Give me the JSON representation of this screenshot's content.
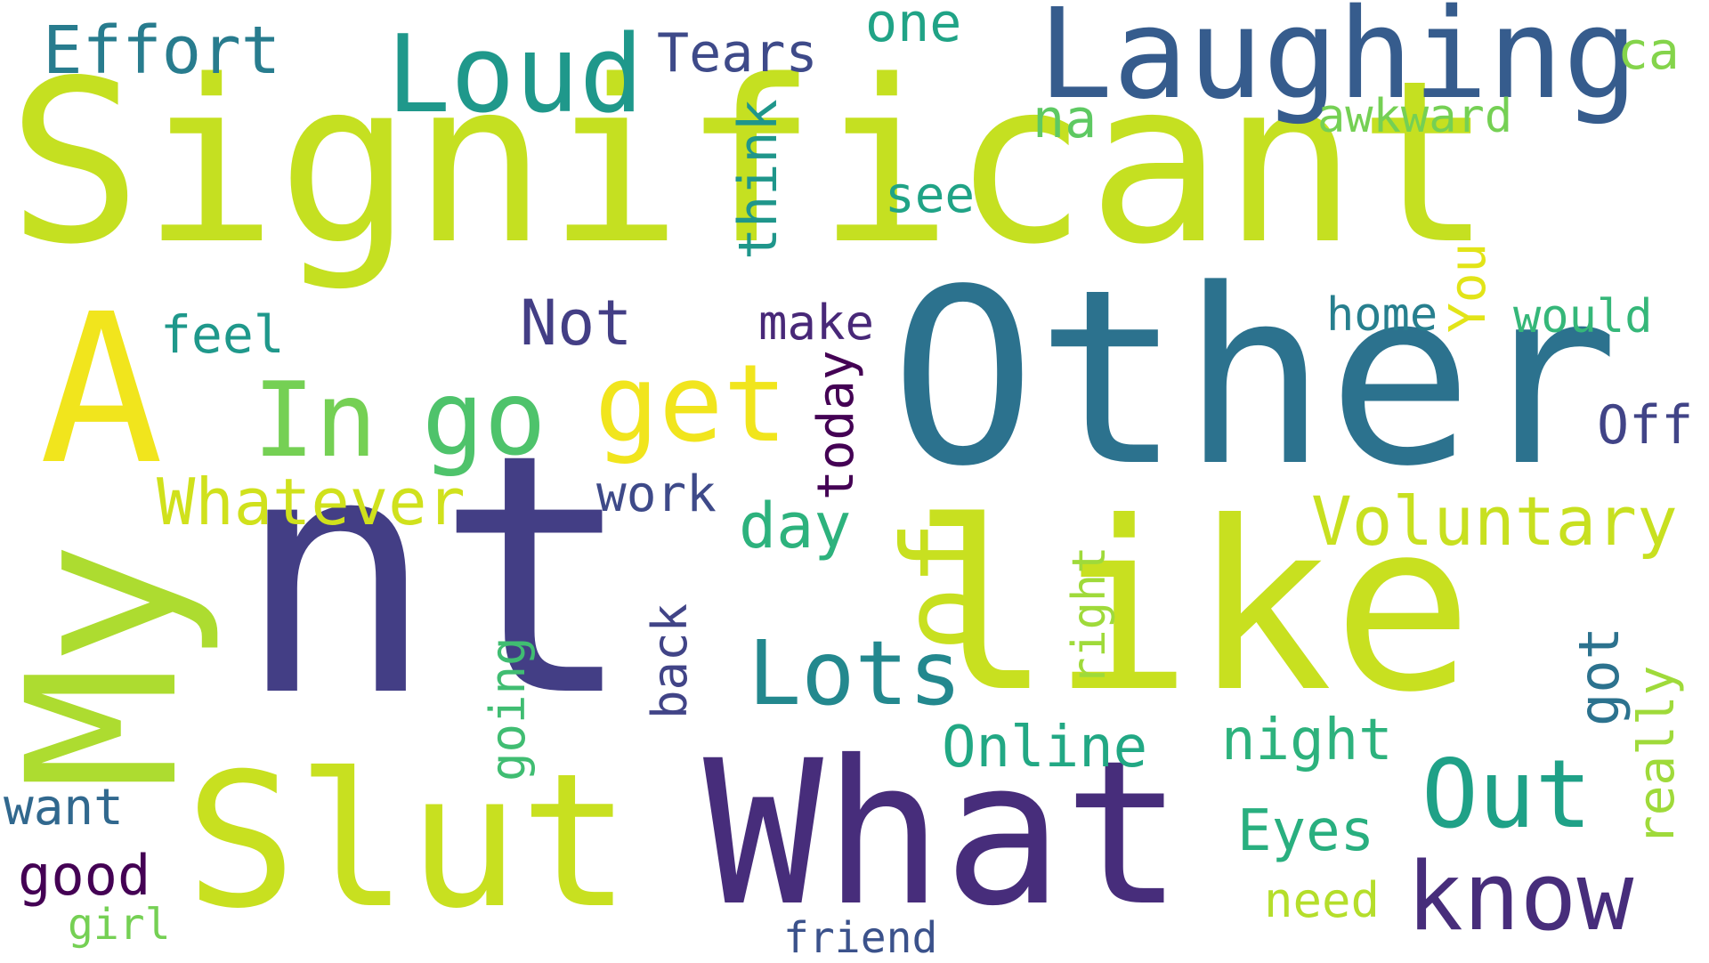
{
  "colors": {
    "background": "#ffffff",
    "palette": "viridis"
  },
  "words": [
    {
      "text": "Significant",
      "color": "#c5e021",
      "orientation": "horizontal"
    },
    {
      "text": "Other",
      "color": "#2c728e",
      "orientation": "horizontal"
    },
    {
      "text": "nt",
      "color": "#433e85",
      "orientation": "horizontal"
    },
    {
      "text": "like",
      "color": "#c8e020",
      "orientation": "horizontal"
    },
    {
      "text": "What",
      "color": "#472d7b",
      "orientation": "horizontal"
    },
    {
      "text": "Slut",
      "color": "#c8e020",
      "orientation": "horizontal"
    },
    {
      "text": "My",
      "color": "#addc30",
      "orientation": "vertical"
    },
    {
      "text": "A",
      "color": "#f1e51d",
      "orientation": "horizontal"
    },
    {
      "text": "Laughing",
      "color": "#365c8d",
      "orientation": "horizontal"
    },
    {
      "text": "Loud",
      "color": "#1f988b",
      "orientation": "horizontal"
    },
    {
      "text": "get",
      "color": "#f1e51d",
      "orientation": "horizontal"
    },
    {
      "text": "go",
      "color": "#4ec36b",
      "orientation": "horizontal"
    },
    {
      "text": "In",
      "color": "#75d054",
      "orientation": "horizontal"
    },
    {
      "text": "of",
      "color": "#c8e020",
      "orientation": "vertical"
    },
    {
      "text": "Lots",
      "color": "#23888e",
      "orientation": "horizontal"
    },
    {
      "text": "Out",
      "color": "#1fa187",
      "orientation": "horizontal"
    },
    {
      "text": "know",
      "color": "#472d7b",
      "orientation": "horizontal"
    },
    {
      "text": "Voluntary",
      "color": "#c8e020",
      "orientation": "horizontal"
    },
    {
      "text": "Whatever",
      "color": "#d0e11c",
      "orientation": "horizontal"
    },
    {
      "text": "Effort",
      "color": "#287c8e",
      "orientation": "horizontal"
    },
    {
      "text": "Tears",
      "color": "#3e4a89",
      "orientation": "horizontal"
    },
    {
      "text": "one",
      "color": "#20a386",
      "orientation": "horizontal"
    },
    {
      "text": "ca",
      "color": "#84d44b",
      "orientation": "horizontal"
    },
    {
      "text": "na",
      "color": "#5ec962",
      "orientation": "horizontal"
    },
    {
      "text": "awkward",
      "color": "#75d054",
      "orientation": "horizontal"
    },
    {
      "text": "think",
      "color": "#1f968b",
      "orientation": "vertical"
    },
    {
      "text": "see",
      "color": "#20a386",
      "orientation": "horizontal"
    },
    {
      "text": "You",
      "color": "#e2e418",
      "orientation": "vertical"
    },
    {
      "text": "home",
      "color": "#277f8e",
      "orientation": "horizontal"
    },
    {
      "text": "would",
      "color": "#35b779",
      "orientation": "horizontal"
    },
    {
      "text": "Off",
      "color": "#414487",
      "orientation": "horizontal"
    },
    {
      "text": "feel",
      "color": "#1f988b",
      "orientation": "horizontal"
    },
    {
      "text": "Not",
      "color": "#433e85",
      "orientation": "horizontal"
    },
    {
      "text": "make",
      "color": "#482878",
      "orientation": "horizontal"
    },
    {
      "text": "today",
      "color": "#440154",
      "orientation": "vertical"
    },
    {
      "text": "work",
      "color": "#3e4a89",
      "orientation": "horizontal"
    },
    {
      "text": "day",
      "color": "#2db27d",
      "orientation": "horizontal"
    },
    {
      "text": "right",
      "color": "#9fda3a",
      "orientation": "vertical"
    },
    {
      "text": "going",
      "color": "#40bd72",
      "orientation": "vertical"
    },
    {
      "text": "back",
      "color": "#414487",
      "orientation": "vertical"
    },
    {
      "text": "got",
      "color": "#2c728e",
      "orientation": "vertical"
    },
    {
      "text": "really",
      "color": "#9fda3a",
      "orientation": "vertical"
    },
    {
      "text": "Online",
      "color": "#22a884",
      "orientation": "horizontal"
    },
    {
      "text": "night",
      "color": "#2db27d",
      "orientation": "horizontal"
    },
    {
      "text": "Eyes",
      "color": "#29af7f",
      "orientation": "horizontal"
    },
    {
      "text": "need",
      "color": "#b5de2b",
      "orientation": "horizontal"
    },
    {
      "text": "want",
      "color": "#31688e",
      "orientation": "horizontal"
    },
    {
      "text": "good",
      "color": "#440154",
      "orientation": "horizontal"
    },
    {
      "text": "girl",
      "color": "#75d054",
      "orientation": "horizontal"
    },
    {
      "text": "friend",
      "color": "#3b528b",
      "orientation": "horizontal"
    }
  ]
}
